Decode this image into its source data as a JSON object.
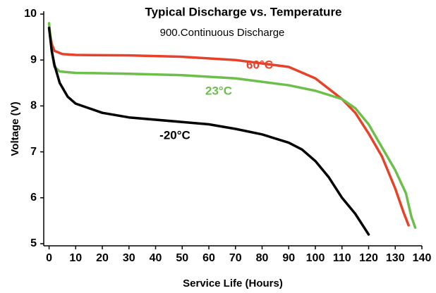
{
  "chart_data": {
    "type": "line",
    "title": "Typical Discharge vs. Temperature",
    "subtitle": "900.Continuous Discharge",
    "xlabel": "Service Life (Hours)",
    "ylabel": "Voltage (V)",
    "xlim": [
      -2,
      140
    ],
    "ylim": [
      5,
      10
    ],
    "xticks": [
      0,
      10,
      20,
      30,
      40,
      50,
      60,
      70,
      80,
      90,
      100,
      110,
      120,
      130,
      140
    ],
    "yticks": [
      5,
      6,
      7,
      8,
      9,
      10
    ],
    "grid": false,
    "series": [
      {
        "name": "60°C",
        "color": "#e8412a",
        "x": [
          0,
          1,
          2,
          5,
          10,
          30,
          50,
          70,
          90,
          100,
          110,
          115,
          120,
          125,
          130,
          133,
          135
        ],
        "values": [
          9.7,
          9.35,
          9.2,
          9.13,
          9.11,
          9.1,
          9.07,
          9.0,
          8.85,
          8.6,
          8.15,
          7.85,
          7.4,
          6.9,
          6.2,
          5.7,
          5.4
        ]
      },
      {
        "name": "23°C",
        "color": "#6cbf4a",
        "x": [
          0,
          1,
          2,
          4,
          10,
          30,
          50,
          70,
          90,
          100,
          110,
          115,
          120,
          125,
          130,
          134,
          136,
          137.5
        ],
        "values": [
          9.8,
          9.2,
          8.85,
          8.75,
          8.72,
          8.7,
          8.67,
          8.6,
          8.45,
          8.33,
          8.15,
          7.95,
          7.6,
          7.1,
          6.6,
          6.1,
          5.6,
          5.35
        ]
      },
      {
        "name": "-20°C",
        "color": "#000000",
        "x": [
          0,
          1,
          2,
          4,
          7,
          10,
          20,
          30,
          50,
          60,
          70,
          80,
          90,
          95,
          100,
          105,
          110,
          115,
          120
        ],
        "values": [
          9.7,
          9.2,
          8.9,
          8.5,
          8.2,
          8.05,
          7.85,
          7.75,
          7.65,
          7.6,
          7.5,
          7.38,
          7.2,
          7.05,
          6.8,
          6.45,
          6.0,
          5.65,
          5.2
        ]
      }
    ]
  }
}
